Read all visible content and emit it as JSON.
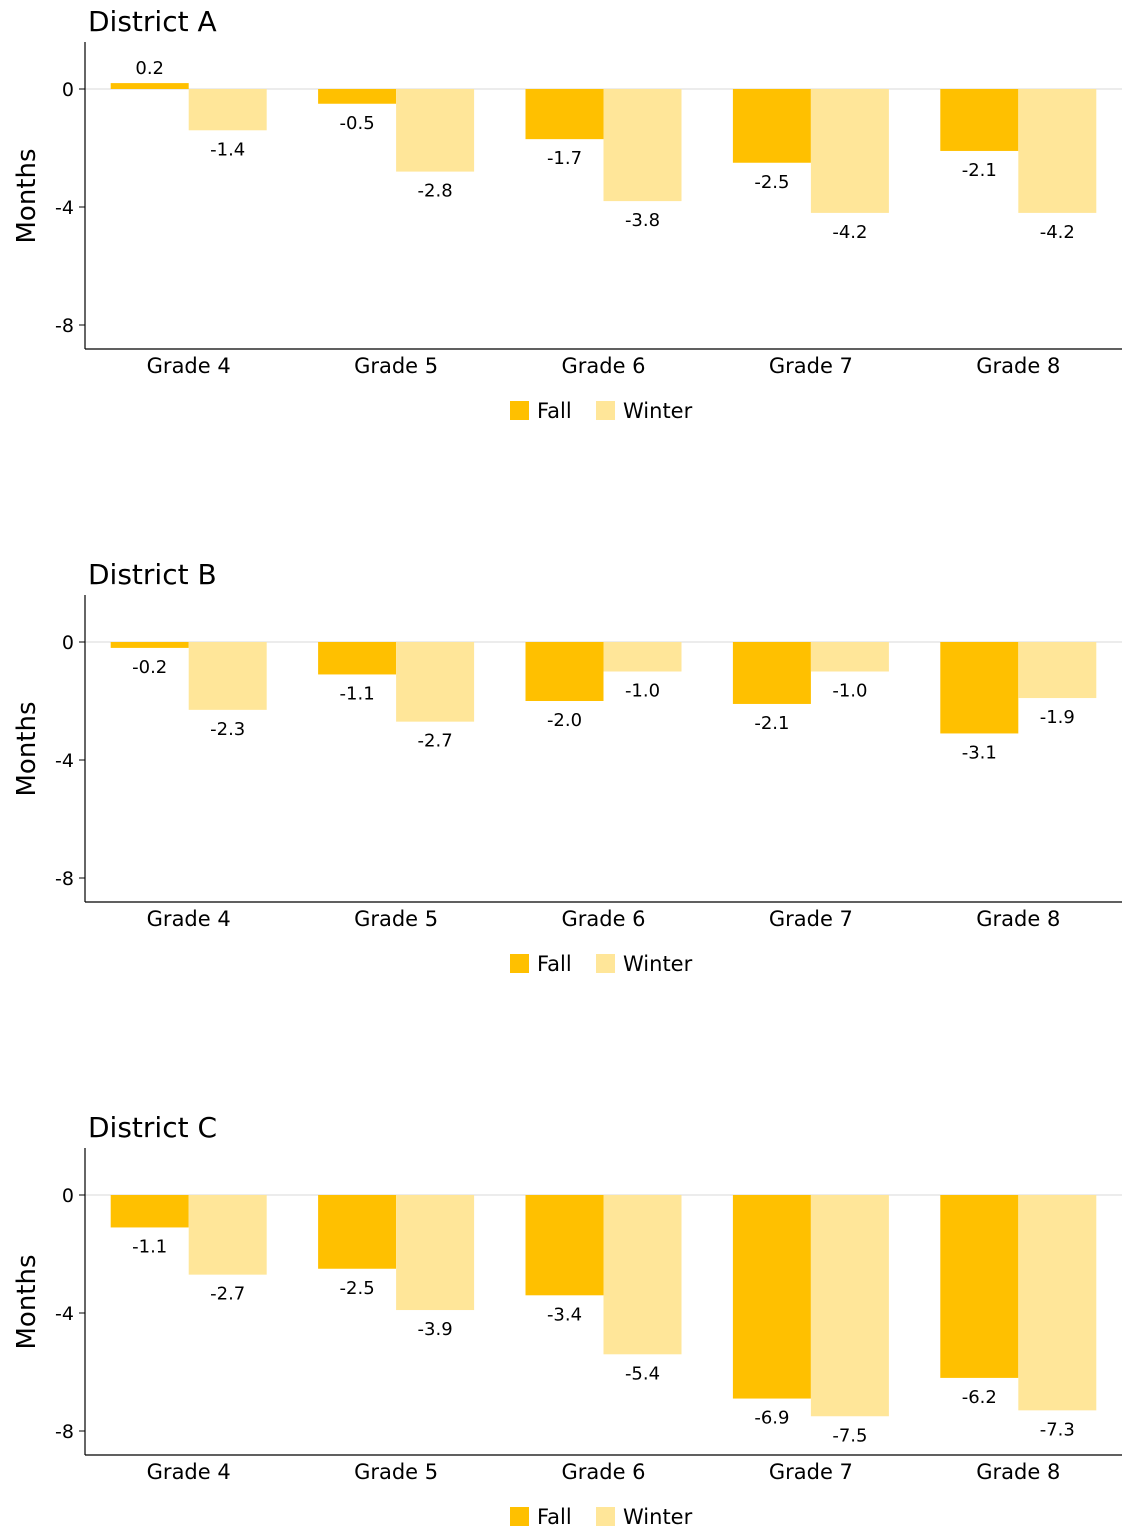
{
  "colors": {
    "fall": "#FFC000",
    "winter": "#FFE699",
    "axis": "#000000",
    "zero_line": "#E6E6E6"
  },
  "chart_data": [
    {
      "type": "bar",
      "title": "District A",
      "xlabel": "",
      "ylabel": "Months",
      "ylim": [
        -8.8,
        1.5
      ],
      "yticks": [
        0,
        -4,
        -8
      ],
      "ytick_labels": [
        "0",
        "-4",
        "-8"
      ],
      "grid": false,
      "legend": "bottom-center",
      "categories": [
        "Grade 4",
        "Grade 5",
        "Grade 6",
        "Grade 7",
        "Grade 8"
      ],
      "series": [
        {
          "name": "Fall",
          "values": [
            0.2,
            -0.5,
            -1.7,
            -2.5,
            -2.1
          ],
          "labels": [
            "0.2",
            "-0.5",
            "-1.7",
            "-2.5",
            "-2.1"
          ]
        },
        {
          "name": "Winter",
          "values": [
            -1.4,
            -2.8,
            -3.8,
            -4.2,
            -4.2
          ],
          "labels": [
            "-1.4",
            "-2.8",
            "-3.8",
            "-4.2",
            "-4.2"
          ]
        }
      ]
    },
    {
      "type": "bar",
      "title": "District B",
      "xlabel": "",
      "ylabel": "Months",
      "ylim": [
        -8.8,
        1.5
      ],
      "yticks": [
        0,
        -4,
        -8
      ],
      "ytick_labels": [
        "0",
        "-4",
        "-8"
      ],
      "grid": false,
      "legend": "bottom-center",
      "categories": [
        "Grade 4",
        "Grade 5",
        "Grade 6",
        "Grade 7",
        "Grade 8"
      ],
      "series": [
        {
          "name": "Fall",
          "values": [
            -0.2,
            -1.1,
            -2.0,
            -2.1,
            -3.1
          ],
          "labels": [
            "-0.2",
            "-1.1",
            "-2.0",
            "-2.1",
            "-3.1"
          ]
        },
        {
          "name": "Winter",
          "values": [
            -2.3,
            -2.7,
            -1.0,
            -1.0,
            -1.9
          ],
          "labels": [
            "-2.3",
            "-2.7",
            "-1.0",
            "-1.0",
            "-1.9"
          ]
        }
      ]
    },
    {
      "type": "bar",
      "title": "District C",
      "xlabel": "",
      "ylabel": "Months",
      "ylim": [
        -8.8,
        1.5
      ],
      "yticks": [
        0,
        -4,
        -8
      ],
      "ytick_labels": [
        "0",
        "-4",
        "-8"
      ],
      "grid": false,
      "legend": "bottom-center",
      "categories": [
        "Grade 4",
        "Grade 5",
        "Grade 6",
        "Grade 7",
        "Grade 8"
      ],
      "series": [
        {
          "name": "Fall",
          "values": [
            -1.1,
            -2.5,
            -3.4,
            -6.9,
            -6.2
          ],
          "labels": [
            "-1.1",
            "-2.5",
            "-3.4",
            "-6.9",
            "-6.2"
          ]
        },
        {
          "name": "Winter",
          "values": [
            -2.7,
            -3.9,
            -5.4,
            -7.5,
            -7.3
          ],
          "labels": [
            "-2.7",
            "-3.9",
            "-5.4",
            "-7.5",
            "-7.3"
          ]
        }
      ]
    }
  ]
}
